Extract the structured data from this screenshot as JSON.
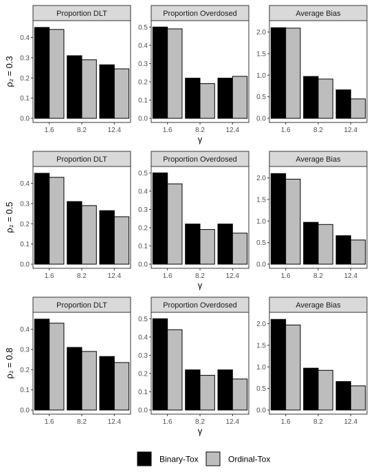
{
  "row_labels": [
    "ρ₂ = 0.3",
    "ρ₂ = 0.5",
    "ρ₂ = 0.8"
  ],
  "xlabel": "γ",
  "legend": [
    {
      "name": "Binary-Tox",
      "color": "#000000"
    },
    {
      "name": "Ordinal-Tox",
      "color": "#bdbdbd"
    }
  ],
  "chart_data": [
    {
      "type": "bar",
      "row": 0,
      "col": 0,
      "title": "Proportion DLT",
      "categories": [
        "1.6",
        "8.2",
        "12.4"
      ],
      "ylim": [
        0,
        0.47
      ],
      "yticks": [
        "0.0",
        "0.1",
        "0.2",
        "0.3",
        "0.4"
      ],
      "series": [
        {
          "name": "Binary-Tox",
          "values": [
            0.45,
            0.31,
            0.265
          ]
        },
        {
          "name": "Ordinal-Tox",
          "values": [
            0.44,
            0.29,
            0.245
          ]
        }
      ]
    },
    {
      "type": "bar",
      "row": 0,
      "col": 1,
      "title": "Proportion Overdosed",
      "categories": [
        "1.6",
        "8.2",
        "12.4"
      ],
      "ylim": [
        0,
        0.52
      ],
      "yticks": [
        "0.0",
        "0.1",
        "0.2",
        "0.3",
        "0.4",
        "0.5"
      ],
      "series": [
        {
          "name": "Binary-Tox",
          "values": [
            0.5,
            0.22,
            0.22
          ]
        },
        {
          "name": "Ordinal-Tox",
          "values": [
            0.49,
            0.19,
            0.23
          ]
        }
      ]
    },
    {
      "type": "bar",
      "row": 0,
      "col": 2,
      "title": "Average Bias",
      "categories": [
        "1.6",
        "8.2",
        "12.4"
      ],
      "ylim": [
        0,
        2.2
      ],
      "yticks": [
        "0.0",
        "0.5",
        "1.0",
        "1.5",
        "2.0"
      ],
      "series": [
        {
          "name": "Binary-Tox",
          "values": [
            2.1,
            0.97,
            0.66
          ]
        },
        {
          "name": "Ordinal-Tox",
          "values": [
            2.09,
            0.91,
            0.45
          ]
        }
      ]
    },
    {
      "type": "bar",
      "row": 1,
      "col": 0,
      "title": "Proportion DLT",
      "categories": [
        "1.6",
        "8.2",
        "12.4"
      ],
      "ylim": [
        0,
        0.47
      ],
      "yticks": [
        "0.0",
        "0.1",
        "0.2",
        "0.3",
        "0.4"
      ],
      "series": [
        {
          "name": "Binary-Tox",
          "values": [
            0.45,
            0.31,
            0.265
          ]
        },
        {
          "name": "Ordinal-Tox",
          "values": [
            0.43,
            0.29,
            0.235
          ]
        }
      ]
    },
    {
      "type": "bar",
      "row": 1,
      "col": 1,
      "title": "Proportion Overdosed",
      "categories": [
        "1.6",
        "8.2",
        "12.4"
      ],
      "ylim": [
        0,
        0.52
      ],
      "yticks": [
        "0.0",
        "0.1",
        "0.2",
        "0.3",
        "0.4",
        "0.5"
      ],
      "series": [
        {
          "name": "Binary-Tox",
          "values": [
            0.5,
            0.22,
            0.22
          ]
        },
        {
          "name": "Ordinal-Tox",
          "values": [
            0.44,
            0.19,
            0.17
          ]
        }
      ]
    },
    {
      "type": "bar",
      "row": 1,
      "col": 2,
      "title": "Average Bias",
      "categories": [
        "1.6",
        "8.2",
        "12.4"
      ],
      "ylim": [
        0,
        2.2
      ],
      "yticks": [
        "0.0",
        "0.5",
        "1.0",
        "1.5",
        "2.0"
      ],
      "series": [
        {
          "name": "Binary-Tox",
          "values": [
            2.1,
            0.97,
            0.66
          ]
        },
        {
          "name": "Ordinal-Tox",
          "values": [
            1.97,
            0.92,
            0.56
          ]
        }
      ]
    },
    {
      "type": "bar",
      "row": 2,
      "col": 0,
      "title": "Proportion DLT",
      "categories": [
        "1.6",
        "8.2",
        "12.4"
      ],
      "ylim": [
        0,
        0.47
      ],
      "yticks": [
        "0.0",
        "0.1",
        "0.2",
        "0.3",
        "0.4"
      ],
      "series": [
        {
          "name": "Binary-Tox",
          "values": [
            0.45,
            0.31,
            0.265
          ]
        },
        {
          "name": "Ordinal-Tox",
          "values": [
            0.43,
            0.29,
            0.235
          ]
        }
      ]
    },
    {
      "type": "bar",
      "row": 2,
      "col": 1,
      "title": "Proportion Overdosed",
      "categories": [
        "1.6",
        "8.2",
        "12.4"
      ],
      "ylim": [
        0,
        0.52
      ],
      "yticks": [
        "0.0",
        "0.1",
        "0.2",
        "0.3",
        "0.4",
        "0.5"
      ],
      "series": [
        {
          "name": "Binary-Tox",
          "values": [
            0.5,
            0.22,
            0.22
          ]
        },
        {
          "name": "Ordinal-Tox",
          "values": [
            0.44,
            0.19,
            0.17
          ]
        }
      ]
    },
    {
      "type": "bar",
      "row": 2,
      "col": 2,
      "title": "Average Bias",
      "categories": [
        "1.6",
        "8.2",
        "12.4"
      ],
      "ylim": [
        0,
        2.2
      ],
      "yticks": [
        "0.0",
        "0.5",
        "1.0",
        "1.5",
        "2.0"
      ],
      "series": [
        {
          "name": "Binary-Tox",
          "values": [
            2.1,
            0.97,
            0.66
          ]
        },
        {
          "name": "Ordinal-Tox",
          "values": [
            1.97,
            0.92,
            0.56
          ]
        }
      ]
    }
  ]
}
